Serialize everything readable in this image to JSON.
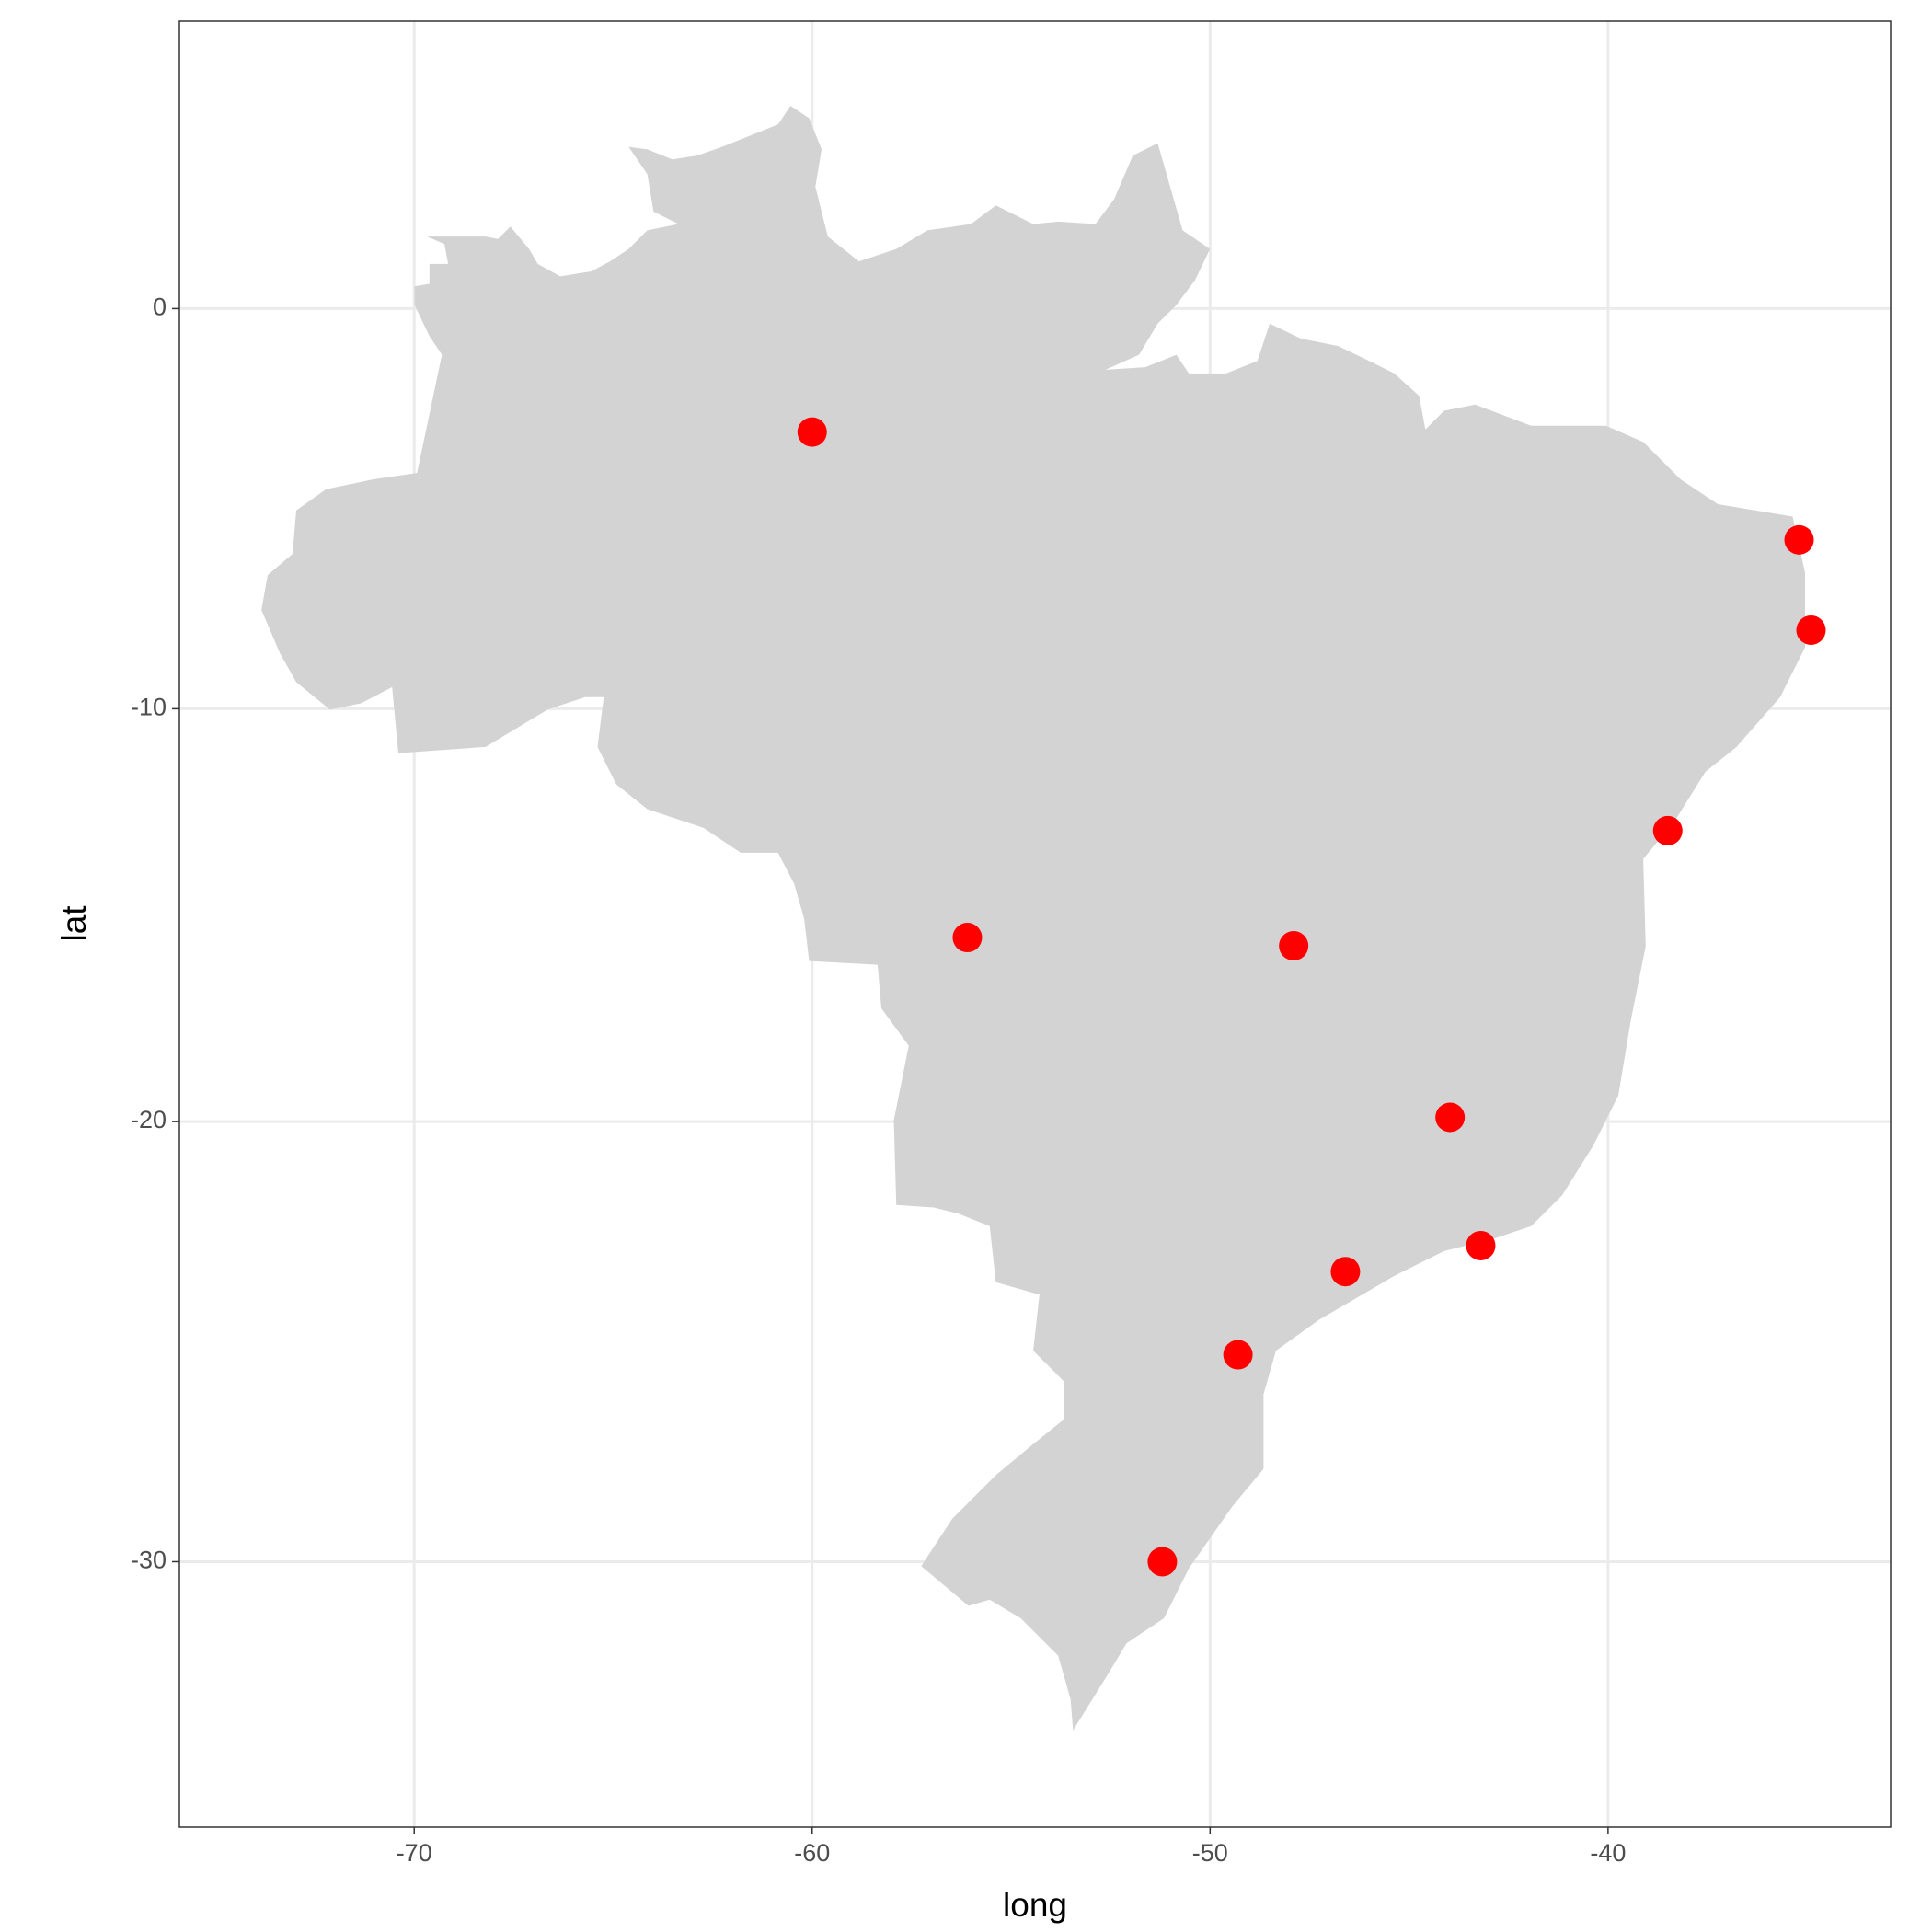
{
  "chart_data": {
    "type": "scatter",
    "x_label": "long",
    "y_label": "lat",
    "x": [
      -60.0,
      -35.2,
      -34.9,
      -38.5,
      -56.1,
      -47.9,
      -43.97,
      -43.2,
      -46.6,
      -49.3,
      -51.2
    ],
    "values": [
      -3.1,
      -5.8,
      -8.05,
      -13.0,
      -15.6,
      -15.8,
      -19.9,
      -22.9,
      -23.5,
      -25.4,
      -30.0
    ],
    "color": "#ff0000",
    "xlim": [
      -75.9,
      -32.9
    ],
    "ylim": [
      -35.6,
      7.2
    ],
    "xticks": [
      -70,
      -60,
      -50,
      -40
    ],
    "yticks": [
      0,
      -10,
      -20,
      -30
    ],
    "projection": "mercator",
    "grid": true
  }
}
